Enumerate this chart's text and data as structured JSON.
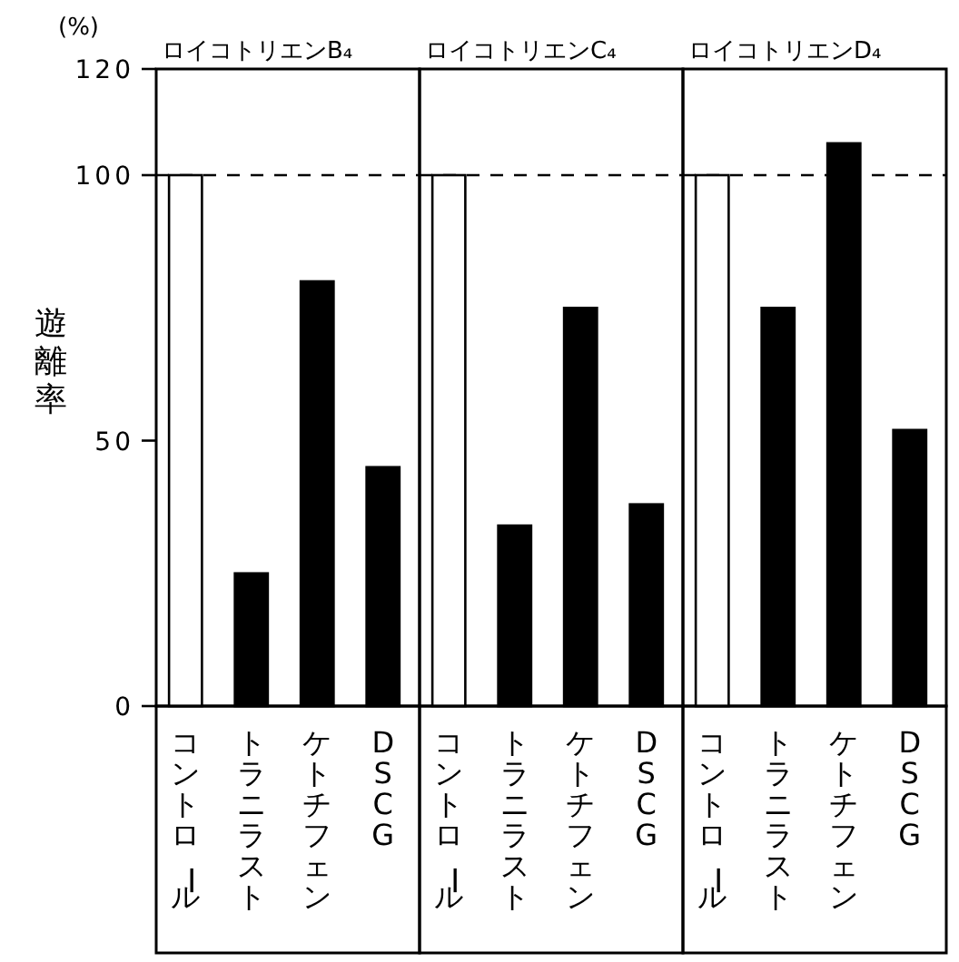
{
  "chart_data": [
    {
      "type": "bar",
      "title": "ロイコトリエンB₄",
      "ylabel": "遊離率",
      "annotations": [
        "(%)"
      ],
      "categories": [
        "コントロール",
        "トラニラスト",
        "ケトチフェン",
        "DSCG"
      ],
      "values": [
        100,
        25,
        80,
        45
      ],
      "colors": [
        "#ffffff",
        "#000000",
        "#000000",
        "#000000"
      ],
      "ylim": [
        0,
        120
      ],
      "yticks": [
        0,
        50,
        100,
        120
      ],
      "ref_lines": [
        {
          "axis": "y",
          "value": 100,
          "line_style": "dashed",
          "color": "#000000"
        }
      ]
    },
    {
      "type": "bar",
      "title": "ロイコトリエンC₄",
      "categories": [
        "コントロール",
        "トラニラスト",
        "ケトチフェン",
        "DSCG"
      ],
      "values": [
        100,
        34,
        75,
        38
      ],
      "colors": [
        "#ffffff",
        "#000000",
        "#000000",
        "#000000"
      ],
      "ylim": [
        0,
        120
      ],
      "tick_labels": "x",
      "ref_lines": [
        {
          "axis": "y",
          "value": 100,
          "line_style": "dashed",
          "color": "#000000"
        }
      ]
    },
    {
      "type": "bar",
      "title": "ロイコトリエンD₄",
      "categories": [
        "コントロール",
        "トラニラスト",
        "ケトチフェン",
        "DSCG"
      ],
      "values": [
        100,
        75,
        106,
        52
      ],
      "colors": [
        "#ffffff",
        "#000000",
        "#000000",
        "#000000"
      ],
      "ylim": [
        0,
        120
      ],
      "tick_labels": "x",
      "ref_lines": [
        {
          "axis": "y",
          "value": 100,
          "line_style": "dashed",
          "color": "#000000"
        }
      ]
    }
  ]
}
